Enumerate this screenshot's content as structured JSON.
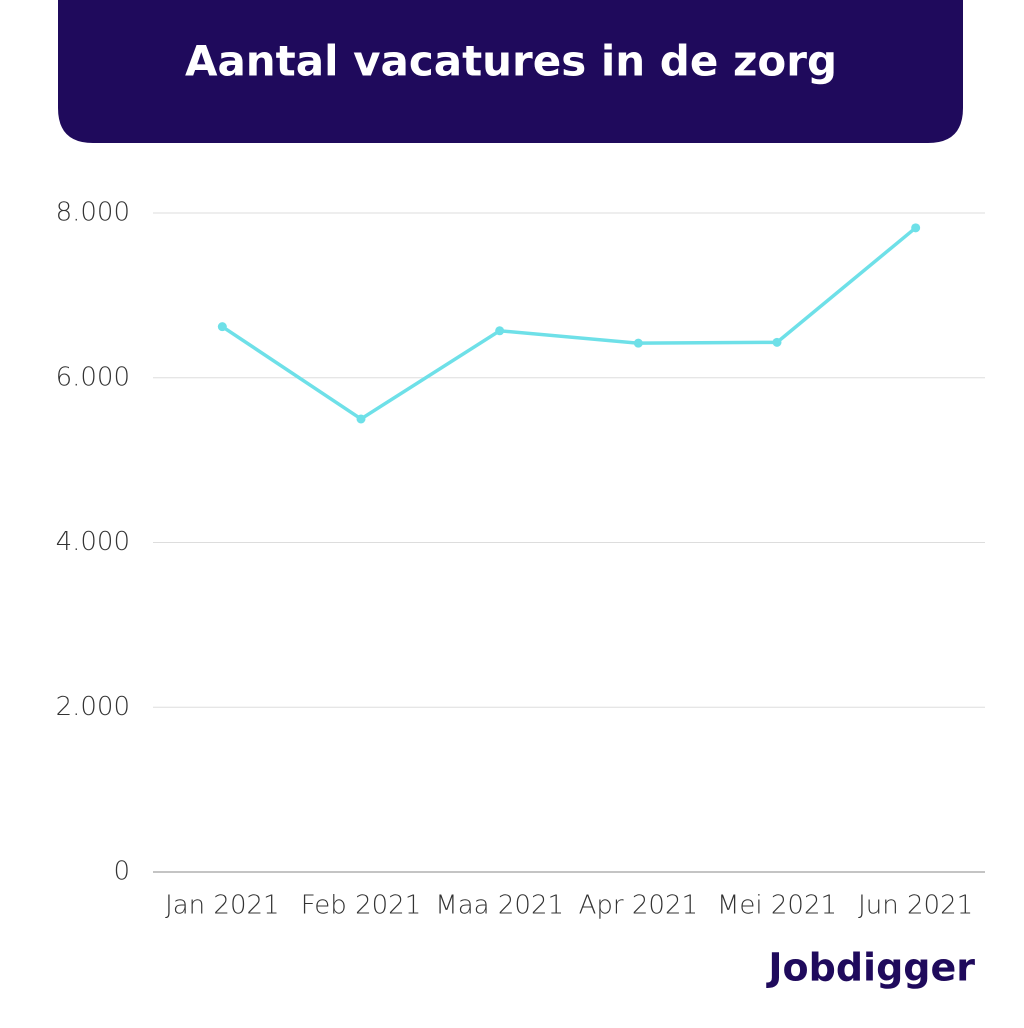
{
  "chart_data": {
    "type": "line",
    "title": "Aantal vacatures in de zorg",
    "categories": [
      "Jan 2021",
      "Feb 2021",
      "Maa 2021",
      "Apr 2021",
      "Mei 2021",
      "Jun 2021"
    ],
    "values": [
      6620,
      5500,
      6570,
      6420,
      6430,
      7820
    ],
    "color": "#6ee0e8",
    "ylim": [
      0,
      8000
    ],
    "yticks": [
      0,
      {
        "value": 2000,
        "label": "2.000"
      },
      {
        "value": 4000,
        "label": "4.000"
      },
      {
        "value": 6000,
        "label": "6.000"
      },
      {
        "value": 8000,
        "label": "8.000"
      }
    ],
    "grid": true,
    "logo": "Jobdigger"
  }
}
